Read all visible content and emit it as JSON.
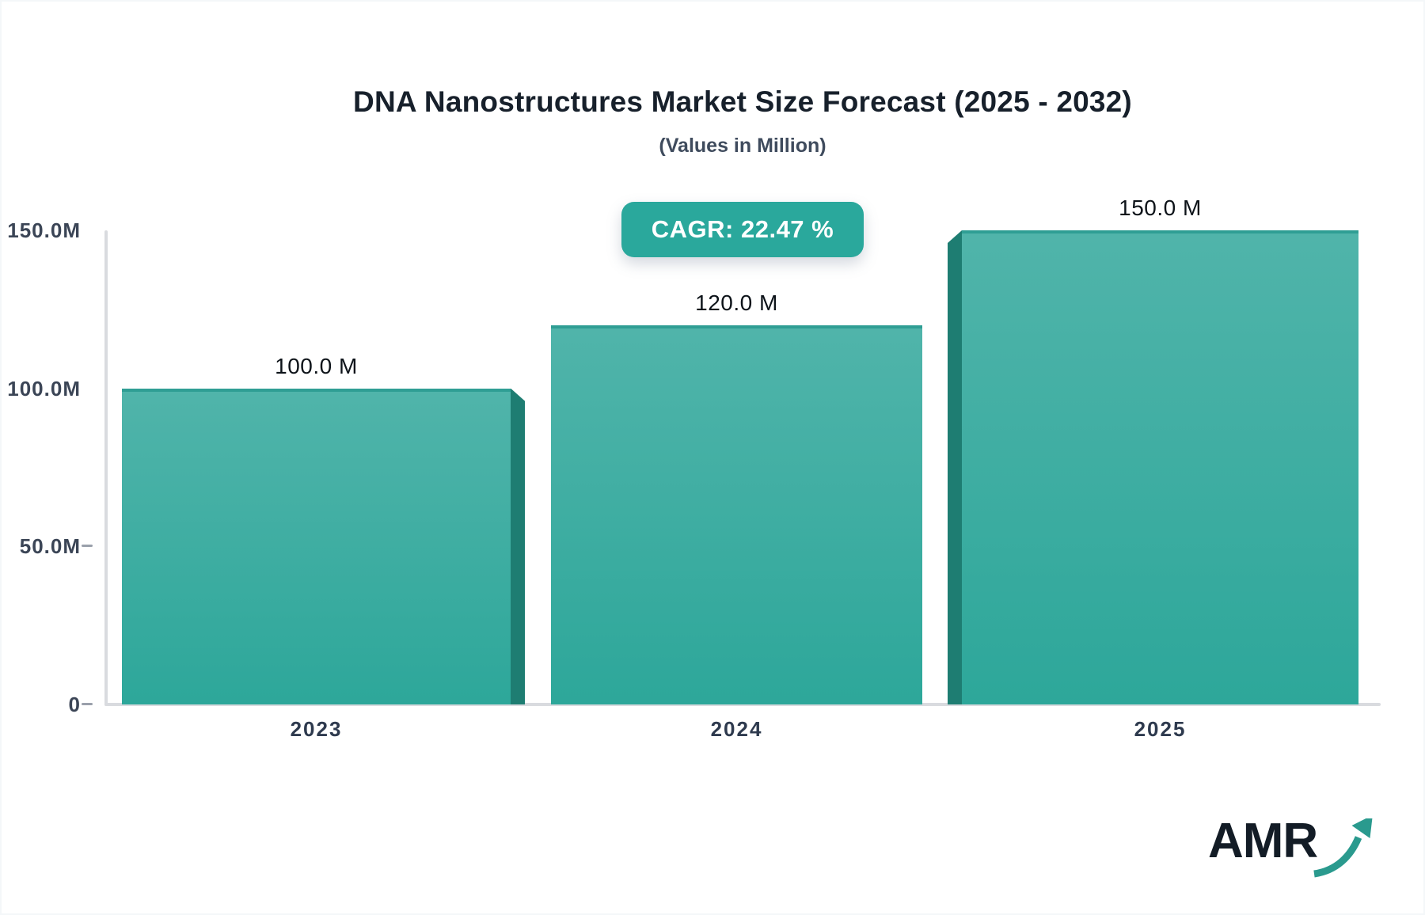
{
  "header": {
    "title": "DNA Nanostructures Market Size Forecast (2025 - 2032)",
    "subtitle": "(Values in Million)"
  },
  "badge": {
    "label": "CAGR: 22.47 %"
  },
  "logo": {
    "text": "AMR",
    "icon": "growth-arrow-icon"
  },
  "colors": {
    "bar_gradient_top": "#50b4aa",
    "bar_gradient_bottom": "#2da79a",
    "bar_top_edge": "#2f9e94",
    "bar_side_panel": "#1e7d72",
    "badge_background": "#2aa89c",
    "axis_line": "#d9dbdf",
    "title_text": "#17202b",
    "subtitle_text": "#3f4b5d",
    "tick_text": "#3b4556",
    "logo_arrow": "#2a9a8e"
  },
  "chart_data": {
    "type": "bar",
    "title": "DNA Nanostructures Market Size Forecast (2025 - 2032)",
    "subtitle": "(Values in Million)",
    "categories": [
      "2023",
      "2024",
      "2025"
    ],
    "values": [
      100,
      120,
      150
    ],
    "value_labels": [
      "100.0 M",
      "120.0 M",
      "150.0 M"
    ],
    "xlabel": "",
    "ylabel": "",
    "ylim": [
      0,
      150
    ],
    "yticks": [
      {
        "label": "150.0M",
        "value": 150,
        "dash": false
      },
      {
        "label": "100.0M",
        "value": 100,
        "dash": false
      },
      {
        "label": "50.0M",
        "value": 50,
        "dash": true
      },
      {
        "label": "0",
        "value": 0,
        "dash": true
      }
    ],
    "grid": false,
    "legend": false,
    "bar_style": "3d-bevel",
    "panel_sides": [
      "right",
      "none",
      "left"
    ],
    "annotation": "CAGR: 22.47 %"
  }
}
